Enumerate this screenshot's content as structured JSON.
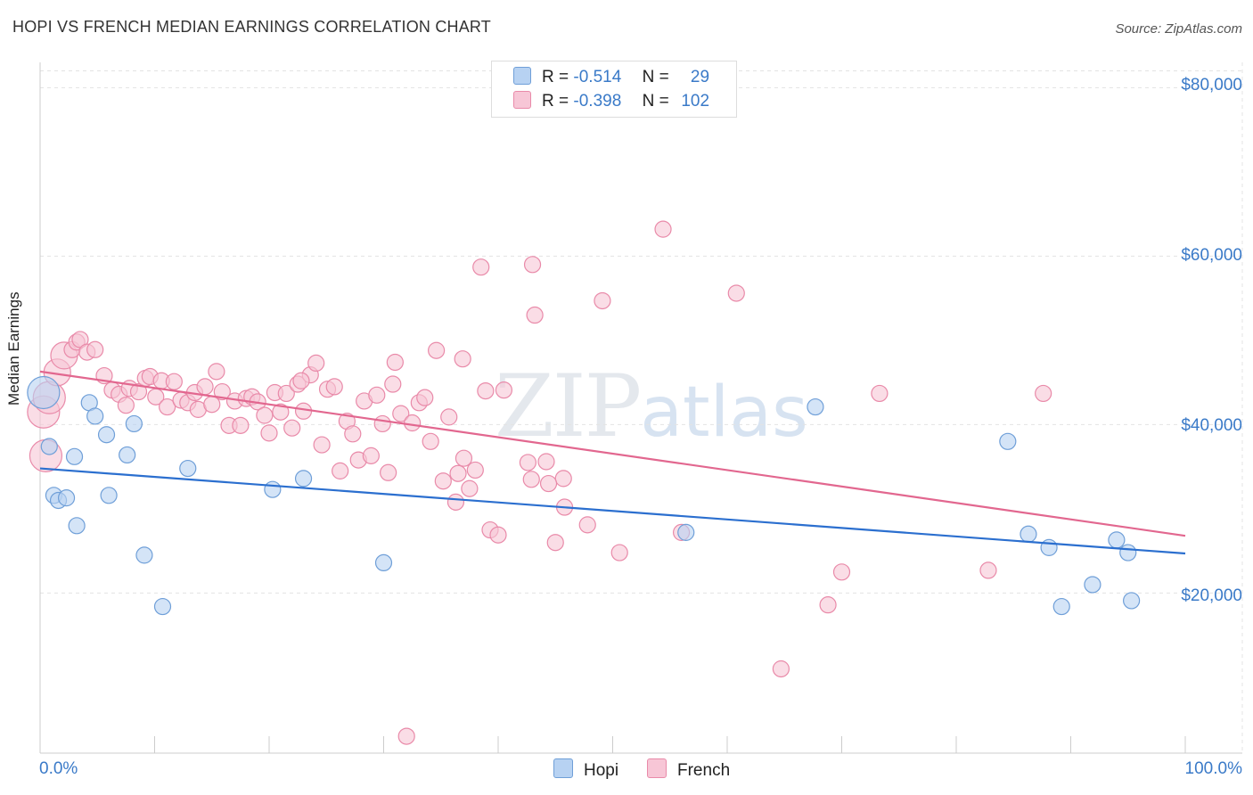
{
  "title": "HOPI VS FRENCH MEDIAN EARNINGS CORRELATION CHART",
  "source": "Source: ZipAtlas.com",
  "watermark": {
    "zip": "ZIP",
    "atlas": "atlas"
  },
  "legend": {
    "rows": [
      {
        "r_label": "R =",
        "r_value": "-0.514",
        "n_label": "N =",
        "n_value": "29"
      },
      {
        "r_label": "R =",
        "r_value": "-0.398",
        "n_label": "N =",
        "n_value": "102"
      }
    ]
  },
  "bottom_legend": {
    "hopi": "Hopi",
    "french": "French"
  },
  "colors": {
    "hopi_fill": "#b7d2f2",
    "hopi_stroke": "#6f9fd8",
    "hopi_line": "#2b6fcf",
    "french_fill": "#f7c6d6",
    "french_stroke": "#e98aa9",
    "french_line": "#e2678f",
    "tick_text": "#3a7ac8",
    "grid": "#e3e3e3"
  },
  "chart_data": {
    "type": "scatter",
    "title": "HOPI VS FRENCH MEDIAN EARNINGS CORRELATION CHART",
    "xlabel": "",
    "ylabel": "Median Earnings",
    "xlim": [
      0,
      100
    ],
    "ylim": [
      1000,
      83000
    ],
    "x_tick_labels": [
      "0.0%",
      "100.0%"
    ],
    "y_ticks": [
      20000,
      40000,
      60000,
      80000
    ],
    "y_tick_labels": [
      "$20,000",
      "$40,000",
      "$60,000",
      "$80,000"
    ],
    "grid": true,
    "series": [
      {
        "name": "Hopi",
        "points": [
          [
            0.3,
            43800
          ],
          [
            0.8,
            37400
          ],
          [
            1.2,
            31600
          ],
          [
            1.6,
            31000
          ],
          [
            2.3,
            31300
          ],
          [
            3.0,
            36200
          ],
          [
            3.2,
            28000
          ],
          [
            4.3,
            42600
          ],
          [
            4.8,
            41000
          ],
          [
            5.8,
            38800
          ],
          [
            6.0,
            31600
          ],
          [
            7.6,
            36400
          ],
          [
            8.2,
            40100
          ],
          [
            9.1,
            24500
          ],
          [
            10.7,
            18400
          ],
          [
            12.9,
            34800
          ],
          [
            20.3,
            32300
          ],
          [
            23.0,
            33600
          ],
          [
            30.0,
            23600
          ],
          [
            56.4,
            27200
          ],
          [
            67.7,
            42100
          ],
          [
            84.5,
            38000
          ],
          [
            86.3,
            27000
          ],
          [
            88.1,
            25400
          ],
          [
            89.2,
            18400
          ],
          [
            91.9,
            21000
          ],
          [
            94.0,
            26300
          ],
          [
            95.0,
            24800
          ],
          [
            95.3,
            19100
          ]
        ],
        "trend": [
          [
            0,
            34800
          ],
          [
            100,
            24700
          ]
        ]
      },
      {
        "name": "French",
        "points": [
          [
            0.3,
            41500
          ],
          [
            0.5,
            36300
          ],
          [
            0.8,
            43200
          ],
          [
            1.5,
            46200
          ],
          [
            2.1,
            48200
          ],
          [
            2.8,
            48900
          ],
          [
            3.2,
            49800
          ],
          [
            3.5,
            50100
          ],
          [
            4.1,
            48600
          ],
          [
            4.8,
            48900
          ],
          [
            5.6,
            45800
          ],
          [
            6.3,
            44100
          ],
          [
            6.9,
            43600
          ],
          [
            7.5,
            42300
          ],
          [
            7.8,
            44300
          ],
          [
            8.6,
            43900
          ],
          [
            9.2,
            45500
          ],
          [
            9.6,
            45700
          ],
          [
            10.1,
            43300
          ],
          [
            10.6,
            45200
          ],
          [
            11.1,
            42100
          ],
          [
            11.7,
            45100
          ],
          [
            12.3,
            42900
          ],
          [
            12.9,
            42600
          ],
          [
            13.5,
            43800
          ],
          [
            13.8,
            41800
          ],
          [
            14.4,
            44500
          ],
          [
            15.0,
            42400
          ],
          [
            15.4,
            46300
          ],
          [
            15.9,
            43900
          ],
          [
            16.5,
            39900
          ],
          [
            17.0,
            42800
          ],
          [
            17.5,
            39900
          ],
          [
            18.0,
            43100
          ],
          [
            18.5,
            43300
          ],
          [
            19.0,
            42700
          ],
          [
            19.6,
            41100
          ],
          [
            20.0,
            39000
          ],
          [
            20.5,
            43800
          ],
          [
            21.0,
            41500
          ],
          [
            21.5,
            43700
          ],
          [
            22.0,
            39600
          ],
          [
            22.5,
            44800
          ],
          [
            23.0,
            41600
          ],
          [
            23.6,
            45900
          ],
          [
            24.1,
            47300
          ],
          [
            24.6,
            37600
          ],
          [
            25.1,
            44200
          ],
          [
            25.7,
            44500
          ],
          [
            26.2,
            34500
          ],
          [
            26.8,
            40400
          ],
          [
            27.3,
            38900
          ],
          [
            27.8,
            35800
          ],
          [
            28.3,
            42800
          ],
          [
            28.9,
            36300
          ],
          [
            29.4,
            43500
          ],
          [
            29.9,
            40100
          ],
          [
            30.4,
            34300
          ],
          [
            31.0,
            47400
          ],
          [
            31.5,
            41300
          ],
          [
            32.0,
            3000
          ],
          [
            32.5,
            40200
          ],
          [
            33.1,
            42600
          ],
          [
            33.6,
            43200
          ],
          [
            34.1,
            38000
          ],
          [
            34.6,
            48800
          ],
          [
            35.2,
            33300
          ],
          [
            35.7,
            40900
          ],
          [
            36.3,
            30800
          ],
          [
            36.9,
            47800
          ],
          [
            37.5,
            32400
          ],
          [
            38.0,
            34600
          ],
          [
            38.5,
            58700
          ],
          [
            38.9,
            44000
          ],
          [
            39.3,
            27500
          ],
          [
            40.0,
            26900
          ],
          [
            40.5,
            44100
          ],
          [
            42.6,
            35500
          ],
          [
            42.9,
            33500
          ],
          [
            43.0,
            59000
          ],
          [
            43.2,
            53000
          ],
          [
            44.2,
            35600
          ],
          [
            45.0,
            26000
          ],
          [
            45.7,
            33600
          ],
          [
            45.8,
            30200
          ],
          [
            47.8,
            28100
          ],
          [
            49.1,
            54700
          ],
          [
            50.6,
            24800
          ],
          [
            54.4,
            63200
          ],
          [
            56.0,
            27200
          ],
          [
            60.8,
            55600
          ],
          [
            64.7,
            11000
          ],
          [
            68.8,
            18600
          ],
          [
            70.0,
            22500
          ],
          [
            73.3,
            43700
          ],
          [
            82.8,
            22700
          ],
          [
            87.6,
            43700
          ],
          [
            44.4,
            33000
          ],
          [
            37.0,
            36000
          ],
          [
            30.8,
            44800
          ],
          [
            22.8,
            45200
          ],
          [
            36.5,
            34200
          ]
        ],
        "trend": [
          [
            0,
            46300
          ],
          [
            100,
            26800
          ]
        ]
      }
    ]
  }
}
